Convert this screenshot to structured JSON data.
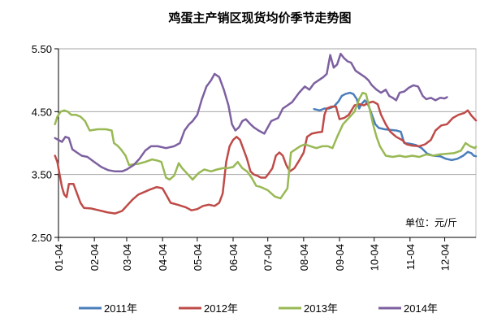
{
  "chart_data": {
    "type": "line",
    "title": "鸡蛋主产销区现货均价季节走势图",
    "unit_note": "单位：元/斤",
    "xlabel": "",
    "ylabel": "",
    "ylim": [
      2.5,
      5.5
    ],
    "y_ticks": [
      2.5,
      3.5,
      4.5,
      5.5
    ],
    "y_tick_labels": [
      "2.50",
      "3.50",
      "4.50",
      "5.50"
    ],
    "x_start": "01-04",
    "x_end": "12-31",
    "x_ticks": [
      "01-04",
      "02-04",
      "03-04",
      "04-04",
      "05-04",
      "06-04",
      "07-04",
      "08-04",
      "09-04",
      "10-04",
      "11-04",
      "12-04"
    ],
    "grid": "horizontal",
    "legend_position": "bottom",
    "series": [
      {
        "name": "2011年",
        "color": "#4A7EBB",
        "points": [
          [
            "08-13",
            4.54
          ],
          [
            "08-18",
            4.52
          ],
          [
            "08-22",
            4.55
          ],
          [
            "08-26",
            4.55
          ],
          [
            "08-30",
            4.58
          ],
          [
            "09-03",
            4.66
          ],
          [
            "09-06",
            4.75
          ],
          [
            "09-09",
            4.78
          ],
          [
            "09-13",
            4.8
          ],
          [
            "09-16",
            4.78
          ],
          [
            "09-19",
            4.7
          ],
          [
            "09-21",
            4.55
          ],
          [
            "09-23",
            4.62
          ],
          [
            "09-26",
            4.68
          ],
          [
            "09-29",
            4.6
          ],
          [
            "10-02",
            4.45
          ],
          [
            "10-05",
            4.3
          ],
          [
            "10-08",
            4.24
          ],
          [
            "10-13",
            4.22
          ],
          [
            "10-18",
            4.21
          ],
          [
            "10-23",
            4.2
          ],
          [
            "10-27",
            4.18
          ],
          [
            "10-30",
            4.0
          ],
          [
            "11-04",
            3.99
          ],
          [
            "11-09",
            3.97
          ],
          [
            "11-14",
            3.92
          ],
          [
            "11-19",
            3.83
          ],
          [
            "11-24",
            3.8
          ],
          [
            "11-30",
            3.79
          ],
          [
            "12-05",
            3.75
          ],
          [
            "12-10",
            3.73
          ],
          [
            "12-15",
            3.75
          ],
          [
            "12-20",
            3.8
          ],
          [
            "12-24",
            3.86
          ],
          [
            "12-27",
            3.84
          ],
          [
            "12-29",
            3.8
          ],
          [
            "12-31",
            3.79
          ]
        ]
      },
      {
        "name": "2012年",
        "color": "#BE4B48",
        "points": [
          [
            "01-01",
            3.8
          ],
          [
            "01-03",
            3.7
          ],
          [
            "01-05",
            3.5
          ],
          [
            "01-07",
            3.3
          ],
          [
            "01-09",
            3.18
          ],
          [
            "01-11",
            3.14
          ],
          [
            "01-13",
            3.35
          ],
          [
            "01-17",
            3.35
          ],
          [
            "01-20",
            3.2
          ],
          [
            "01-23",
            3.05
          ],
          [
            "01-26",
            2.97
          ],
          [
            "02-01",
            2.96
          ],
          [
            "02-08",
            2.93
          ],
          [
            "02-15",
            2.9
          ],
          [
            "02-22",
            2.88
          ],
          [
            "02-28",
            2.92
          ],
          [
            "03-04",
            3.0
          ],
          [
            "03-09",
            3.1
          ],
          [
            "03-14",
            3.18
          ],
          [
            "03-19",
            3.22
          ],
          [
            "03-24",
            3.26
          ],
          [
            "03-30",
            3.3
          ],
          [
            "04-04",
            3.28
          ],
          [
            "04-08",
            3.15
          ],
          [
            "04-11",
            3.05
          ],
          [
            "04-17",
            3.02
          ],
          [
            "04-24",
            2.98
          ],
          [
            "04-29",
            2.93
          ],
          [
            "05-04",
            2.95
          ],
          [
            "05-09",
            3.0
          ],
          [
            "05-14",
            3.02
          ],
          [
            "05-19",
            3.0
          ],
          [
            "05-23",
            3.05
          ],
          [
            "05-26",
            3.2
          ],
          [
            "05-29",
            3.7
          ],
          [
            "06-01",
            3.95
          ],
          [
            "06-04",
            4.05
          ],
          [
            "06-07",
            4.1
          ],
          [
            "06-10",
            4.05
          ],
          [
            "06-13",
            3.9
          ],
          [
            "06-16",
            3.75
          ],
          [
            "06-19",
            3.55
          ],
          [
            "06-22",
            3.5
          ],
          [
            "06-25",
            3.48
          ],
          [
            "06-28",
            3.45
          ],
          [
            "07-02",
            3.45
          ],
          [
            "07-05",
            3.52
          ],
          [
            "07-08",
            3.6
          ],
          [
            "07-11",
            3.8
          ],
          [
            "07-14",
            3.85
          ],
          [
            "07-17",
            3.8
          ],
          [
            "07-20",
            3.65
          ],
          [
            "07-23",
            3.55
          ],
          [
            "07-27",
            3.6
          ],
          [
            "07-31",
            3.72
          ],
          [
            "08-04",
            3.85
          ],
          [
            "08-07",
            4.1
          ],
          [
            "08-11",
            4.15
          ],
          [
            "08-16",
            4.17
          ],
          [
            "08-20",
            4.18
          ],
          [
            "08-22",
            4.45
          ],
          [
            "08-24",
            4.55
          ],
          [
            "08-28",
            4.58
          ],
          [
            "09-01",
            4.58
          ],
          [
            "09-04",
            4.38
          ],
          [
            "09-08",
            4.4
          ],
          [
            "09-12",
            4.45
          ],
          [
            "09-17",
            4.6
          ],
          [
            "09-21",
            4.62
          ],
          [
            "09-25",
            4.6
          ],
          [
            "09-29",
            4.64
          ],
          [
            "10-03",
            4.66
          ],
          [
            "10-07",
            4.62
          ],
          [
            "10-10",
            4.45
          ],
          [
            "10-14",
            4.3
          ],
          [
            "10-18",
            4.18
          ],
          [
            "10-23",
            4.1
          ],
          [
            "10-28",
            4.05
          ],
          [
            "11-01",
            3.98
          ],
          [
            "11-06",
            3.96
          ],
          [
            "11-12",
            3.95
          ],
          [
            "11-17",
            3.98
          ],
          [
            "11-22",
            4.05
          ],
          [
            "11-26",
            4.2
          ],
          [
            "12-01",
            4.28
          ],
          [
            "12-06",
            4.3
          ],
          [
            "12-11",
            4.4
          ],
          [
            "12-16",
            4.45
          ],
          [
            "12-21",
            4.48
          ],
          [
            "12-24",
            4.52
          ],
          [
            "12-27",
            4.44
          ],
          [
            "12-30",
            4.38
          ],
          [
            "12-31",
            4.36
          ]
        ]
      },
      {
        "name": "2013年",
        "color": "#98B954",
        "points": [
          [
            "01-01",
            4.3
          ],
          [
            "01-03",
            4.42
          ],
          [
            "01-06",
            4.5
          ],
          [
            "01-09",
            4.52
          ],
          [
            "01-12",
            4.5
          ],
          [
            "01-15",
            4.45
          ],
          [
            "01-19",
            4.45
          ],
          [
            "01-23",
            4.42
          ],
          [
            "01-27",
            4.35
          ],
          [
            "01-31",
            4.2
          ],
          [
            "02-07",
            4.22
          ],
          [
            "02-14",
            4.22
          ],
          [
            "02-19",
            4.2
          ],
          [
            "02-21",
            4.0
          ],
          [
            "02-24",
            3.96
          ],
          [
            "02-27",
            3.9
          ],
          [
            "03-03",
            3.8
          ],
          [
            "03-06",
            3.65
          ],
          [
            "03-09",
            3.66
          ],
          [
            "03-14",
            3.67
          ],
          [
            "03-20",
            3.7
          ],
          [
            "03-26",
            3.74
          ],
          [
            "03-31",
            3.72
          ],
          [
            "04-03",
            3.7
          ],
          [
            "04-07",
            3.45
          ],
          [
            "04-10",
            3.42
          ],
          [
            "04-14",
            3.48
          ],
          [
            "04-18",
            3.68
          ],
          [
            "04-21",
            3.6
          ],
          [
            "04-26",
            3.5
          ],
          [
            "04-30",
            3.42
          ],
          [
            "05-05",
            3.52
          ],
          [
            "05-10",
            3.58
          ],
          [
            "05-16",
            3.55
          ],
          [
            "05-21",
            3.58
          ],
          [
            "05-26",
            3.6
          ],
          [
            "05-30",
            3.6
          ],
          [
            "06-04",
            3.62
          ],
          [
            "06-08",
            3.7
          ],
          [
            "06-12",
            3.6
          ],
          [
            "06-16",
            3.55
          ],
          [
            "06-20",
            3.45
          ],
          [
            "06-24",
            3.32
          ],
          [
            "06-28",
            3.3
          ],
          [
            "07-04",
            3.25
          ],
          [
            "07-10",
            3.15
          ],
          [
            "07-15",
            3.12
          ],
          [
            "07-18",
            3.2
          ],
          [
            "07-21",
            3.28
          ],
          [
            "07-24",
            3.85
          ],
          [
            "07-28",
            3.9
          ],
          [
            "08-01",
            3.95
          ],
          [
            "08-05",
            3.98
          ],
          [
            "08-10",
            3.95
          ],
          [
            "08-15",
            3.92
          ],
          [
            "08-20",
            3.95
          ],
          [
            "08-25",
            3.95
          ],
          [
            "08-29",
            3.92
          ],
          [
            "09-02",
            4.1
          ],
          [
            "09-07",
            4.3
          ],
          [
            "09-12",
            4.4
          ],
          [
            "09-17",
            4.5
          ],
          [
            "09-21",
            4.7
          ],
          [
            "09-24",
            4.8
          ],
          [
            "09-27",
            4.78
          ],
          [
            "09-30",
            4.55
          ],
          [
            "10-03",
            4.3
          ],
          [
            "10-06",
            4.1
          ],
          [
            "10-09",
            3.95
          ],
          [
            "10-14",
            3.8
          ],
          [
            "10-20",
            3.78
          ],
          [
            "10-26",
            3.8
          ],
          [
            "10-31",
            3.78
          ],
          [
            "11-06",
            3.8
          ],
          [
            "11-12",
            3.78
          ],
          [
            "11-18",
            3.82
          ],
          [
            "11-24",
            3.8
          ],
          [
            "11-30",
            3.82
          ],
          [
            "12-06",
            3.83
          ],
          [
            "12-12",
            3.84
          ],
          [
            "12-18",
            3.88
          ],
          [
            "12-22",
            4.0
          ],
          [
            "12-26",
            3.95
          ],
          [
            "12-30",
            3.92
          ],
          [
            "12-31",
            3.94
          ]
        ]
      },
      {
        "name": "2014年",
        "color": "#7D60A0",
        "points": [
          [
            "01-01",
            4.08
          ],
          [
            "01-04",
            4.05
          ],
          [
            "01-07",
            4.02
          ],
          [
            "01-10",
            4.1
          ],
          [
            "01-13",
            4.08
          ],
          [
            "01-16",
            3.9
          ],
          [
            "01-20",
            3.85
          ],
          [
            "01-24",
            3.8
          ],
          [
            "01-29",
            3.78
          ],
          [
            "02-04",
            3.7
          ],
          [
            "02-10",
            3.62
          ],
          [
            "02-16",
            3.57
          ],
          [
            "02-22",
            3.55
          ],
          [
            "02-28",
            3.55
          ],
          [
            "03-04",
            3.58
          ],
          [
            "03-10",
            3.65
          ],
          [
            "03-15",
            3.75
          ],
          [
            "03-20",
            3.88
          ],
          [
            "03-25",
            3.95
          ],
          [
            "03-31",
            3.95
          ],
          [
            "04-07",
            3.92
          ],
          [
            "04-14",
            3.95
          ],
          [
            "04-19",
            4.0
          ],
          [
            "04-23",
            4.2
          ],
          [
            "04-27",
            4.3
          ],
          [
            "04-30",
            4.35
          ],
          [
            "05-04",
            4.45
          ],
          [
            "05-08",
            4.7
          ],
          [
            "05-12",
            4.9
          ],
          [
            "05-16",
            5.0
          ],
          [
            "05-19",
            5.1
          ],
          [
            "05-23",
            5.05
          ],
          [
            "05-27",
            4.85
          ],
          [
            "05-31",
            4.6
          ],
          [
            "06-03",
            4.3
          ],
          [
            "06-06",
            4.2
          ],
          [
            "06-09",
            4.25
          ],
          [
            "06-12",
            4.35
          ],
          [
            "06-15",
            4.38
          ],
          [
            "06-19",
            4.3
          ],
          [
            "06-22",
            4.25
          ],
          [
            "06-26",
            4.2
          ],
          [
            "07-01",
            4.15
          ],
          [
            "07-07",
            4.35
          ],
          [
            "07-13",
            4.4
          ],
          [
            "07-17",
            4.55
          ],
          [
            "07-21",
            4.6
          ],
          [
            "07-25",
            4.65
          ],
          [
            "07-31",
            4.8
          ],
          [
            "08-05",
            4.9
          ],
          [
            "08-09",
            4.85
          ],
          [
            "08-13",
            4.95
          ],
          [
            "08-17",
            5.0
          ],
          [
            "08-21",
            5.05
          ],
          [
            "08-24",
            5.1
          ],
          [
            "08-27",
            5.4
          ],
          [
            "08-30",
            5.2
          ],
          [
            "09-02",
            5.25
          ],
          [
            "09-05",
            5.42
          ],
          [
            "09-08",
            5.35
          ],
          [
            "09-11",
            5.3
          ],
          [
            "09-14",
            5.28
          ],
          [
            "09-18",
            5.15
          ],
          [
            "09-22",
            5.1
          ],
          [
            "09-26",
            5.05
          ],
          [
            "09-29",
            5.0
          ],
          [
            "10-02",
            4.92
          ],
          [
            "10-06",
            4.85
          ],
          [
            "10-10",
            4.8
          ],
          [
            "10-14",
            4.85
          ],
          [
            "10-17",
            4.75
          ],
          [
            "10-20",
            4.72
          ],
          [
            "10-23",
            4.68
          ],
          [
            "10-26",
            4.8
          ],
          [
            "10-30",
            4.82
          ],
          [
            "11-03",
            4.88
          ],
          [
            "11-07",
            4.92
          ],
          [
            "11-11",
            4.9
          ],
          [
            "11-15",
            4.75
          ],
          [
            "11-18",
            4.7
          ],
          [
            "11-22",
            4.72
          ],
          [
            "11-26",
            4.68
          ],
          [
            "11-30",
            4.72
          ],
          [
            "12-04",
            4.71
          ],
          [
            "12-06",
            4.73
          ]
        ]
      }
    ]
  }
}
